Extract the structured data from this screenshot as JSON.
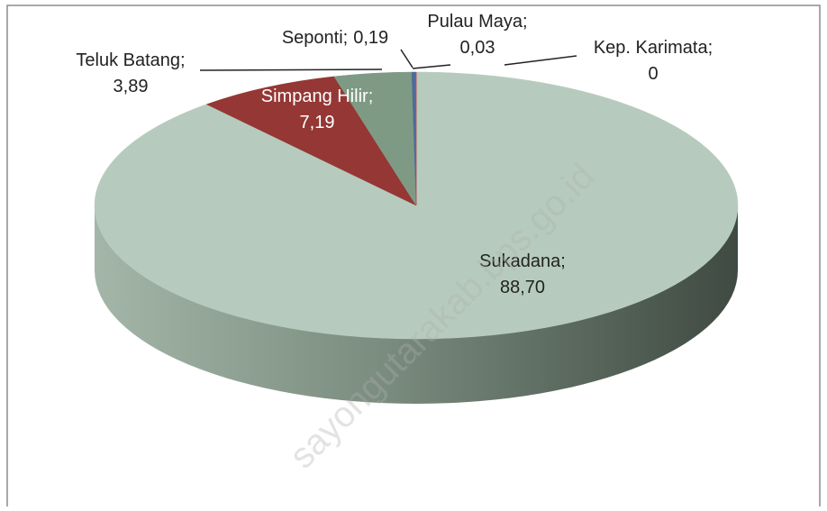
{
  "chart_data": {
    "type": "pie3d",
    "categories": [
      "Sukadana",
      "Simpang Hilir",
      "Teluk Batang",
      "Seponti",
      "Pulau Maya",
      "Kep. Karimata"
    ],
    "values": [
      88.7,
      7.19,
      3.89,
      0.19,
      0.03,
      0
    ],
    "value_labels": [
      "88,70",
      "7,19",
      "3,89",
      "0,19",
      "0,03",
      "0"
    ],
    "label_separator": ";",
    "colors": [
      "#b6cbbd",
      "#953735",
      "#7f9a84",
      "#4f6b9a",
      "#7060a0",
      "#c0504d"
    ],
    "watermark": "sayongutarakab.bps.go.id"
  }
}
